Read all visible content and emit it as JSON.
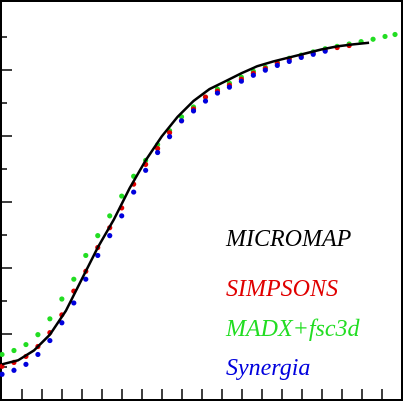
{
  "chart_data": {
    "type": "scatter",
    "title": "",
    "xlabel": "",
    "ylabel": "",
    "xlim": [
      0,
      1
    ],
    "ylim": [
      0,
      1
    ],
    "grid": false,
    "legend_position": "bottom-right",
    "series": [
      {
        "name": "MICROMAP",
        "color": "#000000",
        "style": "line",
        "x": [
          0.0,
          0.04,
          0.08,
          0.12,
          0.16,
          0.2,
          0.24,
          0.28,
          0.32,
          0.36,
          0.4,
          0.44,
          0.48,
          0.52,
          0.56,
          0.6,
          0.64,
          0.68,
          0.72,
          0.76,
          0.8,
          0.84,
          0.88,
          0.92
        ],
        "y": [
          0.085,
          0.095,
          0.12,
          0.16,
          0.22,
          0.3,
          0.38,
          0.45,
          0.53,
          0.6,
          0.66,
          0.71,
          0.75,
          0.78,
          0.8,
          0.82,
          0.838,
          0.85,
          0.86,
          0.87,
          0.88,
          0.888,
          0.893,
          0.897
        ]
      },
      {
        "name": "SIMPSONS",
        "color": "#e00000",
        "style": "points",
        "x": [
          0.0,
          0.03,
          0.06,
          0.09,
          0.12,
          0.15,
          0.18,
          0.21,
          0.24,
          0.27,
          0.3,
          0.33,
          0.36,
          0.39,
          0.42,
          0.45,
          0.48,
          0.51,
          0.54,
          0.57,
          0.6,
          0.63,
          0.66,
          0.69,
          0.72,
          0.75,
          0.78,
          0.81,
          0.84,
          0.87
        ],
        "y": [
          0.08,
          0.09,
          0.105,
          0.13,
          0.165,
          0.21,
          0.27,
          0.32,
          0.38,
          0.43,
          0.48,
          0.54,
          0.59,
          0.63,
          0.67,
          0.7,
          0.73,
          0.76,
          0.775,
          0.79,
          0.805,
          0.82,
          0.832,
          0.845,
          0.855,
          0.862,
          0.87,
          0.878,
          0.885,
          0.89
        ]
      },
      {
        "name": "MADX+fsc3d",
        "color": "#22dd22",
        "style": "points",
        "x": [
          0.0,
          0.03,
          0.06,
          0.09,
          0.12,
          0.15,
          0.18,
          0.21,
          0.24,
          0.27,
          0.3,
          0.33,
          0.36,
          0.39,
          0.42,
          0.45,
          0.48,
          0.51,
          0.54,
          0.57,
          0.6,
          0.63,
          0.66,
          0.69,
          0.72,
          0.75,
          0.78,
          0.81,
          0.84,
          0.87,
          0.9,
          0.93,
          0.96,
          0.985
        ],
        "y": [
          0.11,
          0.12,
          0.135,
          0.16,
          0.2,
          0.25,
          0.3,
          0.36,
          0.41,
          0.46,
          0.51,
          0.56,
          0.6,
          0.64,
          0.675,
          0.71,
          0.735,
          0.76,
          0.78,
          0.795,
          0.81,
          0.825,
          0.835,
          0.848,
          0.858,
          0.866,
          0.874,
          0.882,
          0.888,
          0.894,
          0.9,
          0.906,
          0.913,
          0.918
        ]
      },
      {
        "name": "Synergia",
        "color": "#0000dd",
        "style": "points",
        "x": [
          0.0,
          0.03,
          0.06,
          0.09,
          0.12,
          0.15,
          0.18,
          0.21,
          0.24,
          0.27,
          0.3,
          0.33,
          0.36,
          0.39,
          0.42,
          0.45,
          0.48,
          0.51,
          0.54,
          0.57,
          0.6,
          0.63,
          0.66,
          0.69,
          0.72,
          0.75,
          0.78,
          0.81
        ],
        "y": [
          0.06,
          0.07,
          0.085,
          0.11,
          0.145,
          0.19,
          0.24,
          0.3,
          0.36,
          0.41,
          0.46,
          0.52,
          0.575,
          0.62,
          0.66,
          0.7,
          0.725,
          0.75,
          0.77,
          0.785,
          0.8,
          0.815,
          0.828,
          0.84,
          0.85,
          0.86,
          0.868,
          0.876
        ]
      }
    ]
  }
}
